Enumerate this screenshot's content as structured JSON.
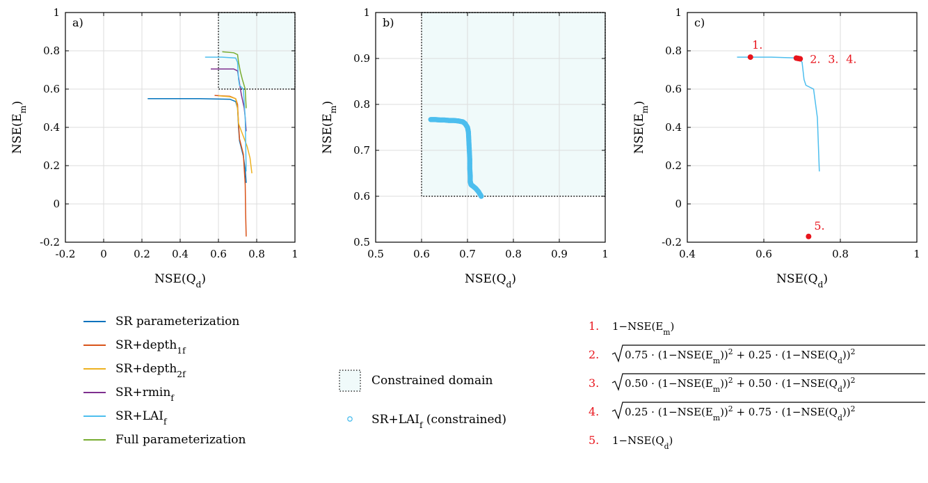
{
  "colors": {
    "sr": "#0072bd",
    "depth1": "#d95319",
    "depth2": "#edb120",
    "rmin": "#7e2f8e",
    "lai": "#4dbeee",
    "full": "#77ac30",
    "red": "#e8141c",
    "domain_fill": "#f0fafa",
    "grid": "#dcdcdc"
  },
  "chart_data": [
    {
      "id": "a",
      "type": "line",
      "panel_label": "a)",
      "xlabel": "NSE(Q",
      "xlabel_sub": "d",
      "ylabel": "NSE(E",
      "ylabel_sub": "m",
      "xlim": [
        -0.2,
        1
      ],
      "ylim": [
        -0.2,
        1
      ],
      "xticks": [
        -0.2,
        0,
        0.2,
        0.4,
        0.6,
        0.8,
        1
      ],
      "xtick_labels": [
        "-0.2",
        "0",
        "0.2",
        "0.4",
        "0.6",
        "0.8",
        "1"
      ],
      "yticks": [
        -0.2,
        0,
        0.2,
        0.4,
        0.6,
        0.8,
        1
      ],
      "ytick_labels": [
        "-0.2",
        "0",
        "0.2",
        "0.4",
        "0.6",
        "0.8",
        "1"
      ],
      "grid": true,
      "constrained_domain": {
        "x": [
          0.6,
          1
        ],
        "y": [
          0.6,
          1
        ]
      },
      "series": [
        {
          "name": "SR parameterization",
          "color_key": "sr",
          "x": [
            0.23,
            0.5,
            0.66,
            0.69,
            0.7,
            0.705,
            0.71,
            0.73,
            0.74,
            0.745
          ],
          "y": [
            0.55,
            0.55,
            0.547,
            0.535,
            0.5,
            0.4,
            0.33,
            0.25,
            0.18,
            0.11
          ]
        },
        {
          "name": "SR+depth1f",
          "color_key": "depth1",
          "x": [
            0.58,
            0.66,
            0.69,
            0.7,
            0.705,
            0.71,
            0.73,
            0.74,
            0.742,
            0.745
          ],
          "y": [
            0.567,
            0.562,
            0.55,
            0.52,
            0.42,
            0.34,
            0.26,
            0.1,
            -0.05,
            -0.17
          ]
        },
        {
          "name": "SR+depth2f",
          "color_key": "depth2",
          "x": [
            0.6,
            0.66,
            0.69,
            0.7,
            0.705,
            0.72,
            0.75,
            0.765,
            0.775
          ],
          "y": [
            0.565,
            0.56,
            0.55,
            0.5,
            0.42,
            0.38,
            0.3,
            0.24,
            0.16
          ]
        },
        {
          "name": "SR+rminf",
          "color_key": "rmin",
          "x": [
            0.56,
            0.68,
            0.7,
            0.71,
            0.72,
            0.735,
            0.74,
            0.745
          ],
          "y": [
            0.705,
            0.705,
            0.695,
            0.63,
            0.57,
            0.5,
            0.45,
            0.38
          ]
        },
        {
          "name": "SR+LAIf",
          "color_key": "lai",
          "x": [
            0.53,
            0.62,
            0.69,
            0.7,
            0.705,
            0.71,
            0.73,
            0.74,
            0.745
          ],
          "y": [
            0.767,
            0.767,
            0.762,
            0.74,
            0.65,
            0.62,
            0.6,
            0.45,
            0.17
          ]
        },
        {
          "name": "Full parameterization",
          "color_key": "full",
          "x": [
            0.62,
            0.68,
            0.7,
            0.705,
            0.715,
            0.725,
            0.74,
            0.745
          ],
          "y": [
            0.795,
            0.79,
            0.78,
            0.74,
            0.69,
            0.65,
            0.6,
            0.5
          ]
        }
      ]
    },
    {
      "id": "b",
      "type": "scatter",
      "panel_label": "b)",
      "xlabel": "NSE(Q",
      "xlabel_sub": "d",
      "ylabel": "NSE(E",
      "ylabel_sub": "m",
      "xlim": [
        0.5,
        1
      ],
      "ylim": [
        0.5,
        1
      ],
      "xticks": [
        0.5,
        0.6,
        0.7,
        0.8,
        0.9,
        1
      ],
      "xtick_labels": [
        "0.5",
        "0.6",
        "0.7",
        "0.8",
        "0.9",
        "1"
      ],
      "yticks": [
        0.5,
        0.6,
        0.7,
        0.8,
        0.9,
        1
      ],
      "ytick_labels": [
        "0.5",
        "0.6",
        "0.7",
        "0.8",
        "0.9",
        "1"
      ],
      "grid": true,
      "constrained_domain": {
        "x": [
          0.6,
          1
        ],
        "y": [
          0.6,
          1
        ]
      },
      "series": [
        {
          "name": "SR+LAIf (constrained)",
          "color_key": "lai",
          "x": [
            0.62,
            0.63,
            0.64,
            0.65,
            0.66,
            0.67,
            0.68,
            0.69,
            0.695,
            0.7,
            0.702,
            0.703,
            0.704,
            0.705,
            0.705,
            0.706,
            0.706,
            0.707,
            0.708,
            0.712,
            0.718,
            0.724,
            0.73
          ],
          "y": [
            0.767,
            0.767,
            0.766,
            0.766,
            0.765,
            0.765,
            0.764,
            0.762,
            0.758,
            0.75,
            0.74,
            0.72,
            0.7,
            0.68,
            0.66,
            0.645,
            0.632,
            0.628,
            0.625,
            0.622,
            0.617,
            0.61,
            0.6
          ]
        }
      ]
    },
    {
      "id": "c",
      "type": "line",
      "panel_label": "c)",
      "xlabel": "NSE(Q",
      "xlabel_sub": "d",
      "ylabel": "NSE(E",
      "ylabel_sub": "m",
      "xlim": [
        0.4,
        1
      ],
      "ylim": [
        -0.2,
        1
      ],
      "xticks": [
        0.4,
        0.6,
        0.8,
        1
      ],
      "xtick_labels": [
        "0.4",
        "0.6",
        "0.8",
        "1"
      ],
      "yticks": [
        -0.2,
        0,
        0.2,
        0.4,
        0.6,
        0.8,
        1
      ],
      "ytick_labels": [
        "-0.2",
        "0",
        "0.2",
        "0.4",
        "0.6",
        "0.8",
        "1"
      ],
      "grid": true,
      "series": [
        {
          "name": "SR+LAIf",
          "color_key": "lai",
          "x": [
            0.53,
            0.62,
            0.69,
            0.7,
            0.705,
            0.71,
            0.73,
            0.74,
            0.745
          ],
          "y": [
            0.767,
            0.767,
            0.762,
            0.74,
            0.65,
            0.62,
            0.6,
            0.45,
            0.17
          ]
        }
      ],
      "points": [
        {
          "label": "1.",
          "x": 0.565,
          "y": 0.767
        },
        {
          "label": "2.",
          "x": 0.685,
          "y": 0.762
        },
        {
          "label": "3.",
          "x": 0.69,
          "y": 0.76
        },
        {
          "label": "4.",
          "x": 0.695,
          "y": 0.758
        },
        {
          "label": "5.",
          "x": 0.717,
          "y": -0.17
        }
      ],
      "point_labels": [
        {
          "text": "1.",
          "anchor_point": 0
        },
        {
          "text": "2.",
          "anchor_point": 3
        },
        {
          "text": "3.",
          "anchor_point": 3
        },
        {
          "text": "4.",
          "anchor_point": 3
        },
        {
          "text": "5.",
          "anchor_point": 4
        }
      ]
    }
  ],
  "legend_left": {
    "entries": [
      {
        "label": "SR parameterization",
        "sub": "",
        "color_key": "sr"
      },
      {
        "label": "SR+depth",
        "sub": "1f",
        "color_key": "depth1"
      },
      {
        "label": "SR+depth",
        "sub": "2f",
        "color_key": "depth2"
      },
      {
        "label": "SR+rmin",
        "sub": "f",
        "color_key": "rmin"
      },
      {
        "label": "SR+LAI",
        "sub": "f",
        "color_key": "lai"
      },
      {
        "label": "Full parameterization",
        "sub": "",
        "color_key": "full"
      }
    ]
  },
  "legend_mid": {
    "domain_label": "Constrained domain",
    "scatter_label": "SR+LAI",
    "scatter_sub": "f",
    "scatter_suffix": " (constrained)"
  },
  "legend_right": {
    "entries": [
      {
        "num": "1.",
        "kind": "plain",
        "text": "1−NSE(E",
        "sub": "m",
        "tail": ")"
      },
      {
        "num": "2.",
        "kind": "sqrt",
        "w1": "0.75",
        "w2": "0.25"
      },
      {
        "num": "3.",
        "kind": "sqrt",
        "w1": "0.50",
        "w2": "0.50"
      },
      {
        "num": "4.",
        "kind": "sqrt",
        "w1": "0.25",
        "w2": "0.75"
      },
      {
        "num": "5.",
        "kind": "plain",
        "text": "1−NSE(Q",
        "sub": "d",
        "tail": ")"
      }
    ]
  }
}
